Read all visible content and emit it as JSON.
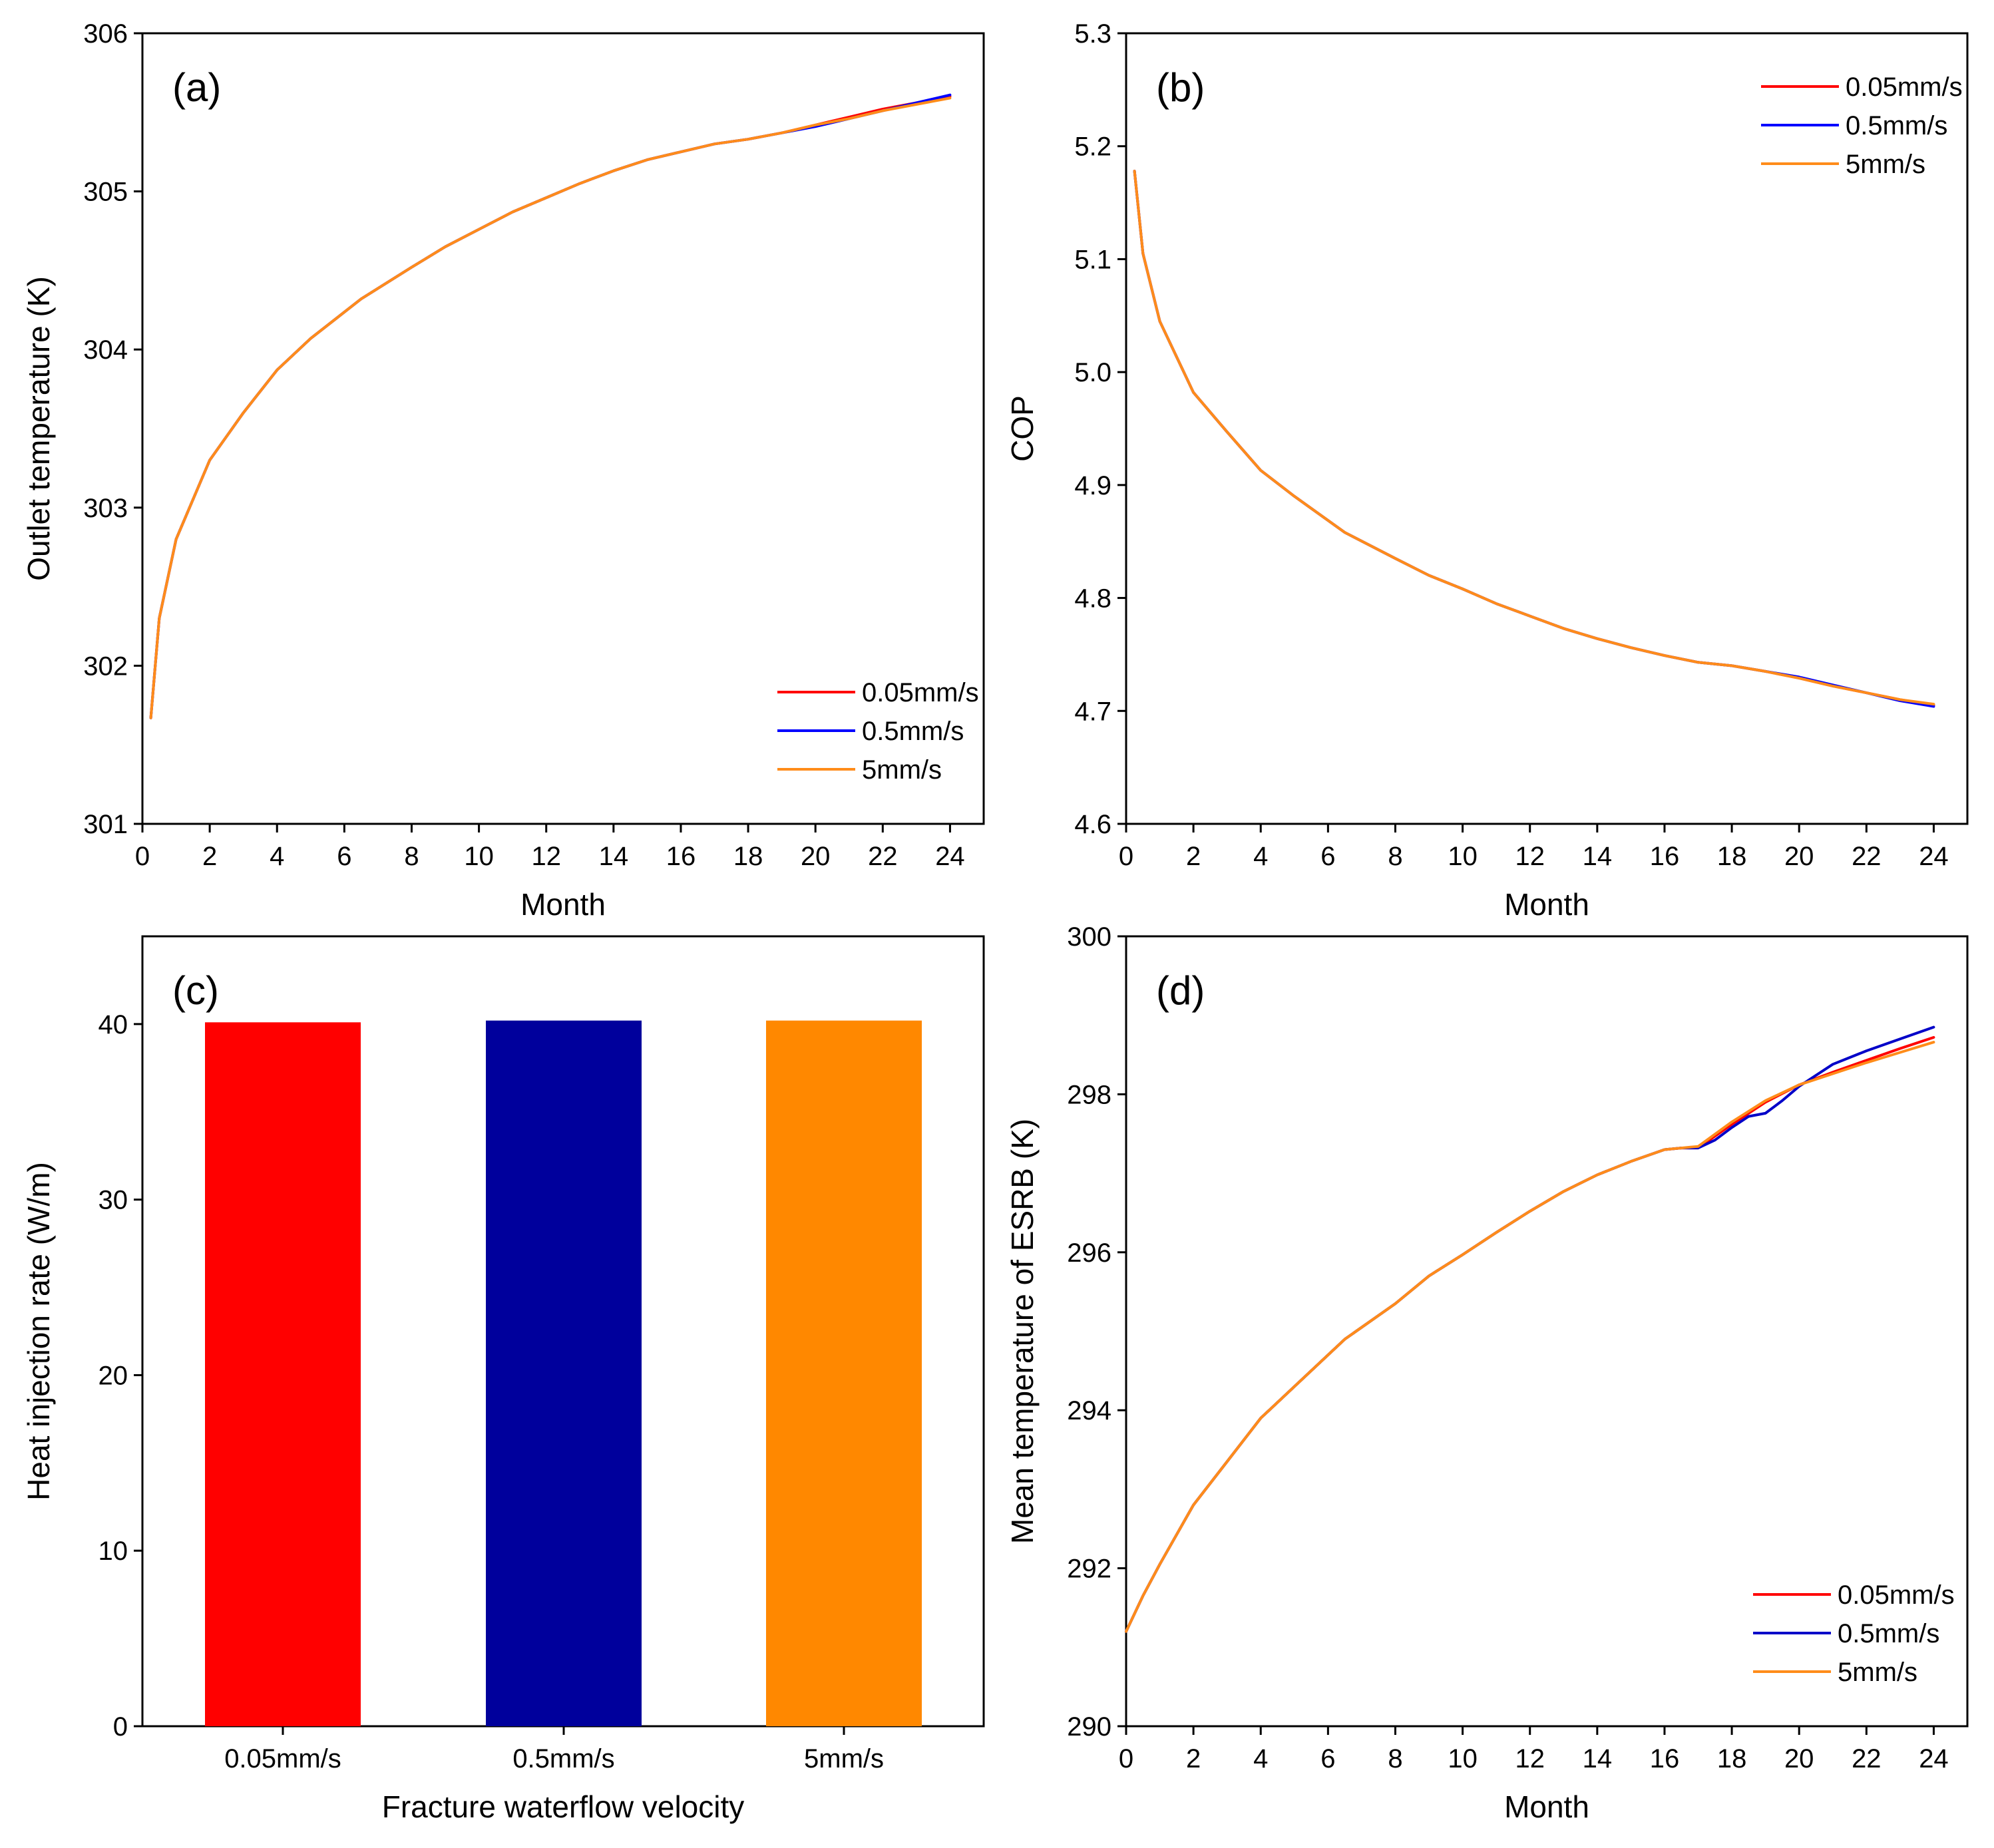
{
  "chart_data": [
    {
      "panel": "(a)",
      "type": "line",
      "xlabel": "Month",
      "ylabel": "Outlet temperature (K)",
      "xlim": [
        0,
        25
      ],
      "ylim": [
        301,
        306
      ],
      "xticks": [
        0,
        2,
        4,
        6,
        8,
        10,
        12,
        14,
        16,
        18,
        20,
        22,
        24
      ],
      "yticks": [
        301,
        302,
        303,
        304,
        305,
        306
      ],
      "legend": "bottom-right",
      "series": [
        {
          "name": "0.05mm/s",
          "color": "#ff0000",
          "x": [
            0.25,
            0.5,
            1,
            2,
            3,
            4,
            5,
            6.5,
            8,
            9,
            10,
            11,
            12,
            13,
            14,
            15,
            16,
            17,
            18,
            19,
            20,
            21,
            22,
            23,
            24
          ],
          "y": [
            301.67,
            302.3,
            302.8,
            303.3,
            303.6,
            303.87,
            304.07,
            304.32,
            304.52,
            304.65,
            304.76,
            304.87,
            304.96,
            305.05,
            305.13,
            305.2,
            305.25,
            305.3,
            305.33,
            305.37,
            305.42,
            305.47,
            305.52,
            305.56,
            305.6
          ]
        },
        {
          "name": "0.5mm/s",
          "color": "#0000ff",
          "x": [
            0.25,
            0.5,
            1,
            2,
            3,
            4,
            5,
            6.5,
            8,
            9,
            10,
            11,
            12,
            13,
            14,
            15,
            16,
            17,
            18,
            19,
            20,
            21,
            22,
            23,
            24
          ],
          "y": [
            301.67,
            302.3,
            302.8,
            303.3,
            303.6,
            303.87,
            304.07,
            304.32,
            304.52,
            304.65,
            304.76,
            304.87,
            304.96,
            305.05,
            305.13,
            305.2,
            305.25,
            305.3,
            305.33,
            305.37,
            305.41,
            305.46,
            305.51,
            305.56,
            305.61
          ]
        },
        {
          "name": "5mm/s",
          "color": "#ff8c1a",
          "x": [
            0.25,
            0.5,
            1,
            2,
            3,
            4,
            5,
            6.5,
            8,
            9,
            10,
            11,
            12,
            13,
            14,
            15,
            16,
            17,
            18,
            19,
            20,
            21,
            22,
            23,
            24
          ],
          "y": [
            301.67,
            302.3,
            302.8,
            303.3,
            303.6,
            303.87,
            304.07,
            304.32,
            304.52,
            304.65,
            304.76,
            304.87,
            304.96,
            305.05,
            305.13,
            305.2,
            305.25,
            305.3,
            305.33,
            305.37,
            305.42,
            305.46,
            305.51,
            305.55,
            305.59
          ]
        }
      ]
    },
    {
      "panel": "(b)",
      "type": "line",
      "xlabel": "Month",
      "ylabel": "COP",
      "xlim": [
        0,
        25
      ],
      "ylim": [
        4.6,
        5.3
      ],
      "xticks": [
        0,
        2,
        4,
        6,
        8,
        10,
        12,
        14,
        16,
        18,
        20,
        22,
        24
      ],
      "yticks": [
        4.6,
        4.7,
        4.8,
        4.9,
        5.0,
        5.1,
        5.2,
        5.3
      ],
      "legend": "top-right",
      "series": [
        {
          "name": "0.05mm/s",
          "color": "#ff0000",
          "x": [
            0.25,
            0.5,
            1,
            2,
            3,
            4,
            5,
            6.5,
            8,
            9,
            10,
            11,
            12,
            13,
            14,
            15,
            16,
            17,
            18,
            19,
            20,
            21,
            22,
            23,
            24
          ],
          "y": [
            5.178,
            5.105,
            5.045,
            4.982,
            4.947,
            4.913,
            4.89,
            4.858,
            4.835,
            4.82,
            4.808,
            4.795,
            4.784,
            4.773,
            4.764,
            4.756,
            4.749,
            4.743,
            4.74,
            4.735,
            4.729,
            4.722,
            4.716,
            4.71,
            4.705
          ]
        },
        {
          "name": "0.5mm/s",
          "color": "#0000ff",
          "x": [
            0.25,
            0.5,
            1,
            2,
            3,
            4,
            5,
            6.5,
            8,
            9,
            10,
            11,
            12,
            13,
            14,
            15,
            16,
            17,
            18,
            19,
            20,
            21,
            22,
            23,
            24
          ],
          "y": [
            5.178,
            5.105,
            5.045,
            4.982,
            4.947,
            4.913,
            4.89,
            4.858,
            4.835,
            4.82,
            4.808,
            4.795,
            4.784,
            4.773,
            4.764,
            4.756,
            4.749,
            4.743,
            4.74,
            4.735,
            4.73,
            4.723,
            4.716,
            4.709,
            4.704
          ]
        },
        {
          "name": "5mm/s",
          "color": "#ff8c1a",
          "x": [
            0.25,
            0.5,
            1,
            2,
            3,
            4,
            5,
            6.5,
            8,
            9,
            10,
            11,
            12,
            13,
            14,
            15,
            16,
            17,
            18,
            19,
            20,
            21,
            22,
            23,
            24
          ],
          "y": [
            5.178,
            5.105,
            5.045,
            4.982,
            4.947,
            4.913,
            4.89,
            4.858,
            4.835,
            4.82,
            4.808,
            4.795,
            4.784,
            4.773,
            4.764,
            4.756,
            4.749,
            4.743,
            4.74,
            4.735,
            4.729,
            4.722,
            4.716,
            4.71,
            4.706
          ]
        }
      ]
    },
    {
      "panel": "(c)",
      "type": "bar",
      "xlabel": "Fracture waterflow velocity",
      "ylabel": "Heat injection rate (W/m)",
      "ylim": [
        0,
        45
      ],
      "yticks": [
        0,
        10,
        20,
        30,
        40
      ],
      "categories": [
        "0.05mm/s",
        "0.5mm/s",
        "5mm/s"
      ],
      "values": [
        40.1,
        40.2,
        40.2
      ],
      "colors": [
        "#ff0000",
        "#00009c",
        "#ff8800"
      ]
    },
    {
      "panel": "(d)",
      "type": "line",
      "xlabel": "Month",
      "ylabel": "Mean temperature of ESRB (K)",
      "xlim": [
        0,
        25
      ],
      "ylim": [
        290,
        300
      ],
      "xticks": [
        0,
        2,
        4,
        6,
        8,
        10,
        12,
        14,
        16,
        18,
        20,
        22,
        24
      ],
      "yticks": [
        290,
        292,
        294,
        296,
        298,
        300
      ],
      "legend": "bottom-right",
      "series": [
        {
          "name": "0.05mm/s",
          "color": "#ff0000",
          "x": [
            0,
            0.5,
            1,
            2,
            3,
            4,
            5,
            6.5,
            8,
            9,
            10,
            11,
            12,
            13,
            14,
            15,
            16,
            16.5,
            17,
            18,
            19,
            20,
            21,
            22,
            23,
            24
          ],
          "y": [
            291.2,
            291.65,
            292.05,
            292.8,
            293.35,
            293.9,
            294.3,
            294.9,
            295.35,
            295.7,
            295.97,
            296.25,
            296.52,
            296.77,
            296.98,
            297.15,
            297.3,
            297.32,
            297.32,
            297.62,
            297.9,
            298.12,
            298.28,
            298.43,
            298.58,
            298.72
          ]
        },
        {
          "name": "0.5mm/s",
          "color": "#0000c8",
          "x": [
            0,
            0.5,
            1,
            2,
            3,
            4,
            5,
            6.5,
            8,
            9,
            10,
            11,
            12,
            13,
            14,
            15,
            16,
            16.5,
            17,
            17.5,
            18,
            18.5,
            19,
            19.5,
            20,
            21,
            22,
            23,
            24
          ],
          "y": [
            291.2,
            291.65,
            292.05,
            292.8,
            293.35,
            293.9,
            294.3,
            294.9,
            295.35,
            295.7,
            295.97,
            296.25,
            296.52,
            296.77,
            296.98,
            297.15,
            297.3,
            297.32,
            297.32,
            297.42,
            297.58,
            297.72,
            297.76,
            297.92,
            298.1,
            298.38,
            298.55,
            298.7,
            298.85
          ]
        },
        {
          "name": "5mm/s",
          "color": "#ff8c1a",
          "x": [
            0,
            0.5,
            1,
            2,
            3,
            4,
            5,
            6.5,
            8,
            9,
            10,
            11,
            12,
            13,
            14,
            15,
            16,
            16.5,
            17,
            18,
            19,
            20,
            21,
            22,
            23,
            24
          ],
          "y": [
            291.2,
            291.65,
            292.05,
            292.8,
            293.35,
            293.9,
            294.3,
            294.9,
            295.35,
            295.7,
            295.97,
            296.25,
            296.52,
            296.77,
            296.98,
            297.15,
            297.3,
            297.32,
            297.34,
            297.65,
            297.92,
            298.12,
            298.26,
            298.4,
            298.53,
            298.66
          ]
        }
      ]
    }
  ]
}
